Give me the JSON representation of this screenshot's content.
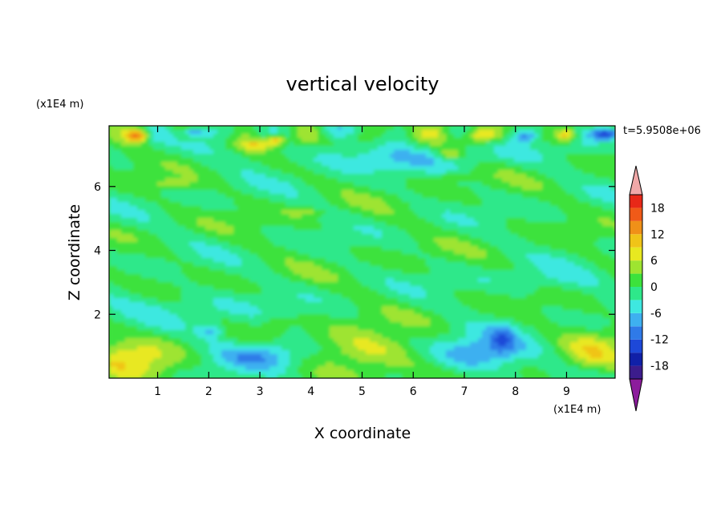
{
  "chart_data": {
    "type": "heatmap",
    "title": "vertical velocity",
    "time_label": "t=5.9508e+06",
    "xlabel": "X coordinate",
    "ylabel": "Z coordinate",
    "x_unit": "(x1E4 m)",
    "y_unit": "(x1E4 m)",
    "xlim": [
      0.05,
      9.95
    ],
    "ylim": [
      0,
      7.9
    ],
    "x_ticks": [
      "1",
      "2",
      "3",
      "4",
      "5",
      "6",
      "7",
      "8",
      "9"
    ],
    "x_tick_values": [
      1,
      2,
      3,
      4,
      5,
      6,
      7,
      8,
      9
    ],
    "y_ticks": [
      "2",
      "4",
      "6"
    ],
    "y_tick_values": [
      2,
      4,
      6
    ],
    "colorbar": {
      "levels": [
        -21,
        -18,
        -15,
        -12,
        -9,
        -6,
        -3,
        0,
        3,
        6,
        9,
        12,
        15,
        18,
        21
      ],
      "tick_labels": [
        "18",
        "12",
        "6",
        "0",
        "-6",
        "-12",
        "-18"
      ],
      "tick_values": [
        18,
        12,
        6,
        0,
        -6,
        -12,
        -18
      ],
      "colors": [
        "#3c1c8c",
        "#1020a8",
        "#1d48d8",
        "#2f7ae8",
        "#3eb0f0",
        "#3ee8e0",
        "#2ee88a",
        "#3ce23c",
        "#9ee430",
        "#e8e820",
        "#f0c418",
        "#f09018",
        "#f05a18",
        "#e82818"
      ],
      "under_color": "#8c1c9c",
      "over_color": "#f0a8a8"
    },
    "field_features": [
      {
        "x": 0.5,
        "z": 0.7,
        "w": 0.0
      },
      {
        "x": 0.45,
        "z": 0.5,
        "w": 6.0
      },
      {
        "x": 2.05,
        "z": 1.5,
        "w": -8.0
      },
      {
        "x": 3.0,
        "z": 0.85,
        "w": -9.0
      },
      {
        "x": 2.8,
        "z": 0.7,
        "w": -12.0
      },
      {
        "x": 5.0,
        "z": 0.9,
        "w": 6.0
      },
      {
        "x": 5.0,
        "z": 0.75,
        "w": 7.0
      },
      {
        "x": 7.2,
        "z": 0.75,
        "w": -9.0
      },
      {
        "x": 7.7,
        "z": 1.0,
        "w": -11.0
      },
      {
        "x": 9.5,
        "z": 0.8,
        "w": 5.0
      },
      {
        "x": 0.6,
        "z": 7.6,
        "w": 18.0
      },
      {
        "x": 3.3,
        "z": 7.5,
        "w": 14.0
      },
      {
        "x": 9.8,
        "z": 7.6,
        "w": -14.0
      },
      {
        "x": 9.0,
        "z": 7.6,
        "w": 12.0
      }
    ]
  }
}
